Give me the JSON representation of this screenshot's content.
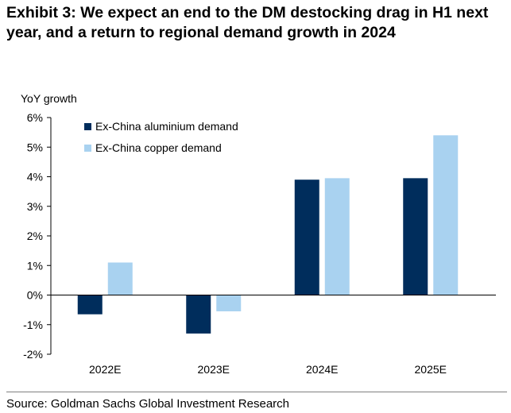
{
  "title": "Exhibit 3: We expect an end to the DM destocking drag in H1 next year, and a return to regional demand growth in 2024",
  "source": "Source: Goldman Sachs Global Investment Research",
  "colors": {
    "aluminium": "#002d5c",
    "copper": "#a9d2f0",
    "axis": "#000000"
  },
  "chart_data": {
    "type": "bar",
    "ylabel": "YoY growth",
    "categories": [
      "2022E",
      "2023E",
      "2024E",
      "2025E"
    ],
    "series": [
      {
        "name": "Ex-China aluminium demand",
        "values": [
          -0.65,
          -1.3,
          3.9,
          3.95
        ]
      },
      {
        "name": "Ex-China copper demand",
        "values": [
          1.1,
          -0.55,
          3.95,
          5.4
        ]
      }
    ],
    "ylim": [
      -2,
      6
    ],
    "yticks": [
      -2,
      -1,
      0,
      1,
      2,
      3,
      4,
      5,
      6
    ],
    "ytick_labels": [
      "-2%",
      "-1%",
      "0%",
      "1%",
      "2%",
      "3%",
      "4%",
      "5%",
      "6%"
    ],
    "legend_placement": "top-left",
    "grid": false
  }
}
